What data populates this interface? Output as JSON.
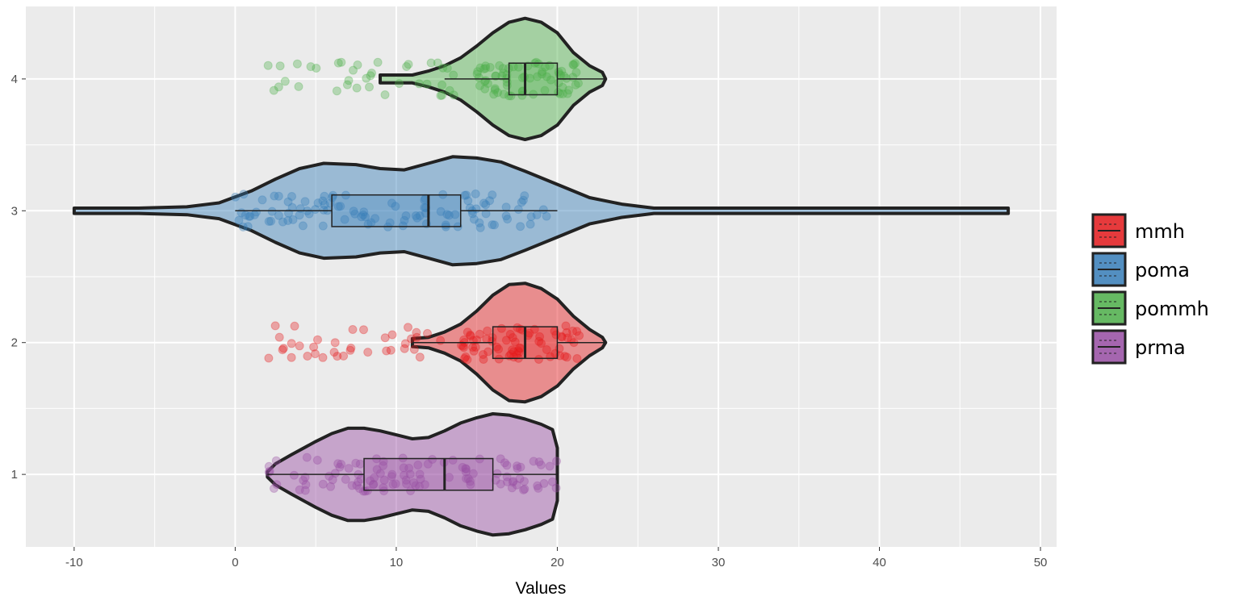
{
  "chart_data": {
    "type": "violin",
    "orientation": "horizontal",
    "title": "",
    "xlabel": "Values",
    "ylabel": "",
    "xlim": [
      -13,
      51
    ],
    "ylim": [
      0.45,
      4.55
    ],
    "x_ticks": [
      -10,
      0,
      10,
      20,
      30,
      40,
      50
    ],
    "x_tick_labels": [
      "-10",
      "0",
      "10",
      "20",
      "30",
      "40",
      "50"
    ],
    "x_minor_ticks": [
      -5,
      5,
      15,
      25,
      35,
      45
    ],
    "y_ticks": [
      1,
      2,
      3,
      4
    ],
    "y_tick_labels": [
      "1",
      "2",
      "3",
      "4"
    ],
    "grid": true,
    "legend_position": "right",
    "colors": {
      "panel_background": "#ebebeb",
      "grid": "#ffffff",
      "outline": "#222222"
    },
    "series": [
      {
        "name": "prma",
        "y": 1,
        "color": "#984ea3",
        "boxplot": {
          "min": 2,
          "q1": 8,
          "median": 13,
          "q3": 16,
          "max": 20
        },
        "violin_profile": [
          [
            2,
            0.02
          ],
          [
            2.5,
            0.08
          ],
          [
            3.5,
            0.15
          ],
          [
            5,
            0.25
          ],
          [
            6,
            0.31
          ],
          [
            7,
            0.35
          ],
          [
            8,
            0.35
          ],
          [
            9,
            0.33
          ],
          [
            10,
            0.3
          ],
          [
            11,
            0.27
          ],
          [
            12,
            0.28
          ],
          [
            13,
            0.33
          ],
          [
            14,
            0.39
          ],
          [
            15,
            0.43
          ],
          [
            16,
            0.46
          ],
          [
            17,
            0.45
          ],
          [
            18,
            0.42
          ],
          [
            19,
            0.38
          ],
          [
            19.7,
            0.34
          ],
          [
            20,
            0.2
          ],
          [
            20,
            0
          ]
        ]
      },
      {
        "name": "mmh",
        "y": 2,
        "color": "#e41a1c",
        "boxplot": {
          "min": 11,
          "q1": 16,
          "median": 18,
          "q3": 20,
          "max": 23
        },
        "violin_profile": [
          [
            11,
            0.03
          ],
          [
            12,
            0.04
          ],
          [
            13,
            0.08
          ],
          [
            14,
            0.14
          ],
          [
            15,
            0.24
          ],
          [
            16,
            0.36
          ],
          [
            17,
            0.44
          ],
          [
            18,
            0.45
          ],
          [
            19,
            0.41
          ],
          [
            20,
            0.33
          ],
          [
            21,
            0.2
          ],
          [
            22,
            0.1
          ],
          [
            22.8,
            0.04
          ],
          [
            23,
            0
          ]
        ]
      },
      {
        "name": "poma",
        "y": 3,
        "color": "#377eb8",
        "boxplot": {
          "min": 0,
          "q1": 6,
          "median": 12,
          "q3": 14,
          "max": 20
        },
        "violin_profile": [
          [
            -10,
            0.02
          ],
          [
            -6,
            0.02
          ],
          [
            -3,
            0.03
          ],
          [
            -1,
            0.06
          ],
          [
            1,
            0.15
          ],
          [
            2.5,
            0.24
          ],
          [
            4,
            0.32
          ],
          [
            5.5,
            0.36
          ],
          [
            7.5,
            0.35
          ],
          [
            9,
            0.32
          ],
          [
            10.5,
            0.31
          ],
          [
            12,
            0.36
          ],
          [
            13.5,
            0.41
          ],
          [
            15,
            0.4
          ],
          [
            16.5,
            0.37
          ],
          [
            18,
            0.3
          ],
          [
            20,
            0.2
          ],
          [
            22,
            0.1
          ],
          [
            24,
            0.05
          ],
          [
            26,
            0.02
          ],
          [
            30,
            0.02
          ],
          [
            35,
            0.02
          ],
          [
            40,
            0.02
          ],
          [
            44,
            0.02
          ],
          [
            48,
            0.02
          ]
        ]
      },
      {
        "name": "pommh",
        "y": 4,
        "color": "#4daf4a",
        "boxplot": {
          "min": 13,
          "q1": 17,
          "median": 18,
          "q3": 20,
          "max": 23
        },
        "violin_profile": [
          [
            9,
            0.03
          ],
          [
            11,
            0.03
          ],
          [
            12,
            0.06
          ],
          [
            13,
            0.1
          ],
          [
            14,
            0.16
          ],
          [
            15,
            0.25
          ],
          [
            16,
            0.35
          ],
          [
            17,
            0.43
          ],
          [
            18,
            0.46
          ],
          [
            19,
            0.43
          ],
          [
            20,
            0.35
          ],
          [
            21,
            0.2
          ],
          [
            22,
            0.1
          ],
          [
            22.8,
            0.05
          ],
          [
            23,
            0
          ]
        ]
      }
    ],
    "legend": [
      {
        "label": "mmh",
        "color": "#e41a1c"
      },
      {
        "label": "poma",
        "color": "#377eb8"
      },
      {
        "label": "pommh",
        "color": "#4daf4a"
      },
      {
        "label": "prma",
        "color": "#984ea3"
      }
    ]
  }
}
